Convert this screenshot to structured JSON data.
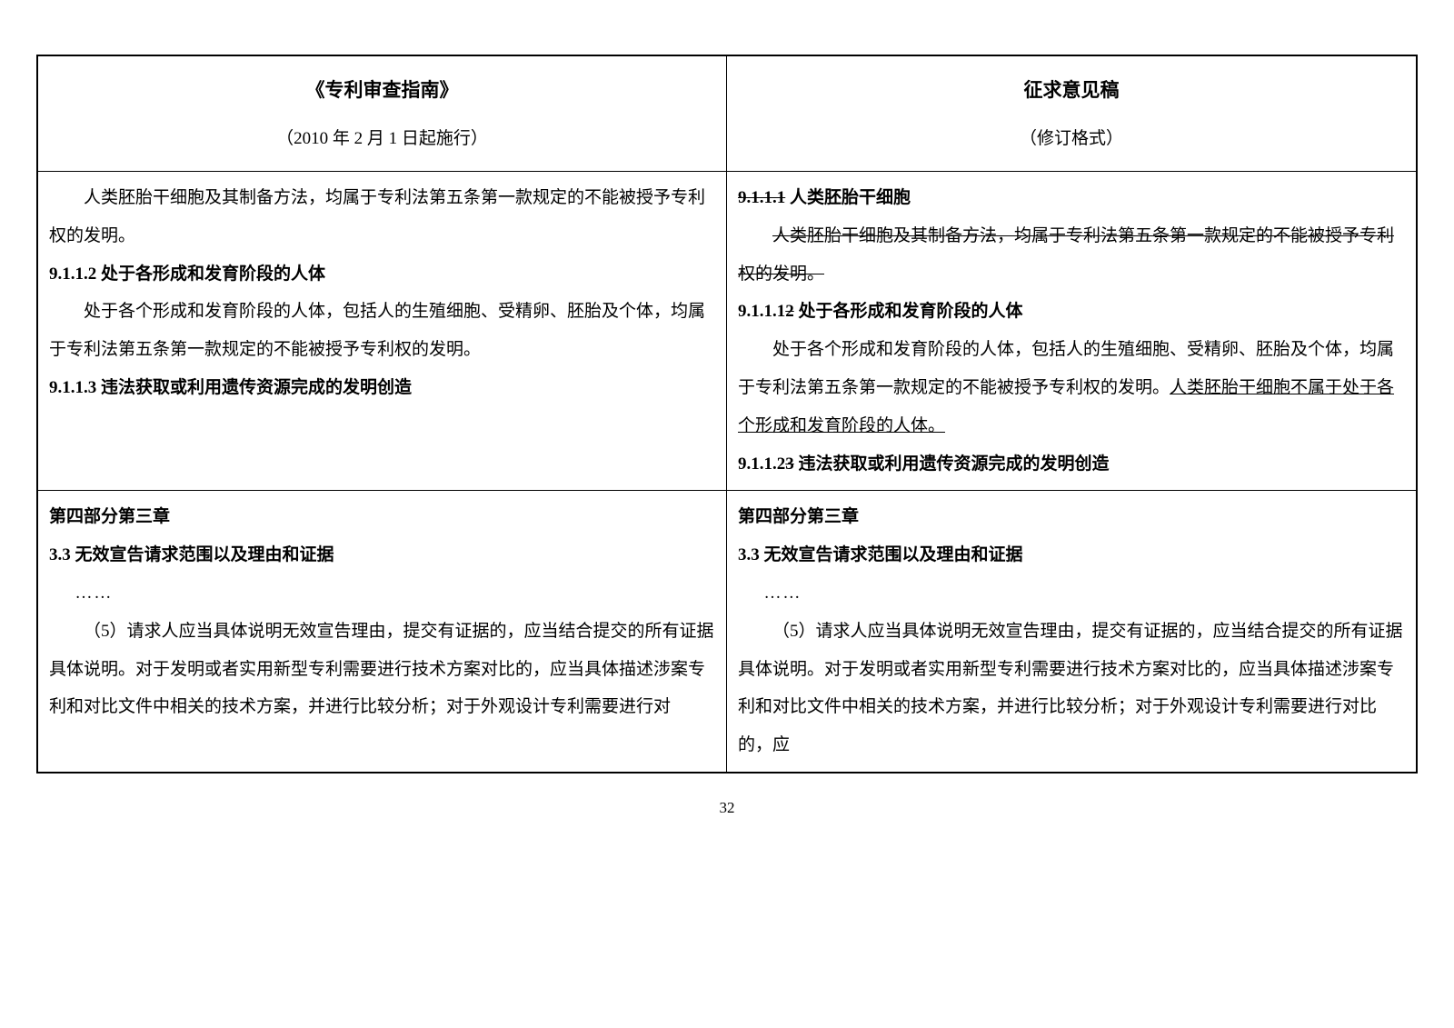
{
  "header": {
    "left_title": "《专利审查指南》",
    "left_subtitle": "（2010 年 2 月 1 日起施行）",
    "right_title": "征求意见稿",
    "right_subtitle": "（修订格式）"
  },
  "section1": {
    "left": {
      "p1": "人类胚胎干细胞及其制备方法，均属于专利法第五条第一款规定的不能被授予专利权的发明。",
      "h1": "9.1.1.2 处于各形成和发育阶段的人体",
      "p2": "处于各个形成和发育阶段的人体，包括人的生殖细胞、受精卵、胚胎及个体，均属于专利法第五条第一款规定的不能被授予专利权的发明。",
      "h2": "9.1.1.3 违法获取或利用遗传资源完成的发明创造"
    },
    "right": {
      "h1_prefix": "9.1.1.1",
      "h1_suffix": " 人类胚胎干细胞",
      "p1": "人类胚胎干细胞及其制备方法，均属于专利法第五条第一款规定的不能被授予专利权的发明。",
      "h2_a": "9.1.1.1",
      "h2_b": "2",
      "h2_c": " 处于各形成和发育阶段的人体",
      "p2a": "处于各个形成和发育阶段的人体，包括人的生殖细胞、受精卵、胚胎及个体，均属于专利法第五条第一款规定的不能被授予专利权的发明。",
      "p2b": "人类胚胎干细胞不属于处于各个形成和发育阶段的人体。",
      "h3_a": "9.1.1.2",
      "h3_b": "3",
      "h3_c": " 违法获取或利用遗传资源完成的发明创造"
    }
  },
  "section2": {
    "left": {
      "h1": "第四部分第三章",
      "h2": "3.3 无效宣告请求范围以及理由和证据",
      "ellipsis": "……",
      "p1": "（5）请求人应当具体说明无效宣告理由，提交有证据的，应当结合提交的所有证据具体说明。对于发明或者实用新型专利需要进行技术方案对比的，应当具体描述涉案专利和对比文件中相关的技术方案，并进行比较分析；对于外观设计专利需要进行对"
    },
    "right": {
      "h1": "第四部分第三章",
      "h2": "3.3 无效宣告请求范围以及理由和证据",
      "ellipsis": "……",
      "p1": "（5）请求人应当具体说明无效宣告理由，提交有证据的，应当结合提交的所有证据具体说明。对于发明或者实用新型专利需要进行技术方案对比的，应当具体描述涉案专利和对比文件中相关的技术方案，并进行比较分析；对于外观设计专利需要进行对比的，应"
    }
  },
  "page_number": "32"
}
